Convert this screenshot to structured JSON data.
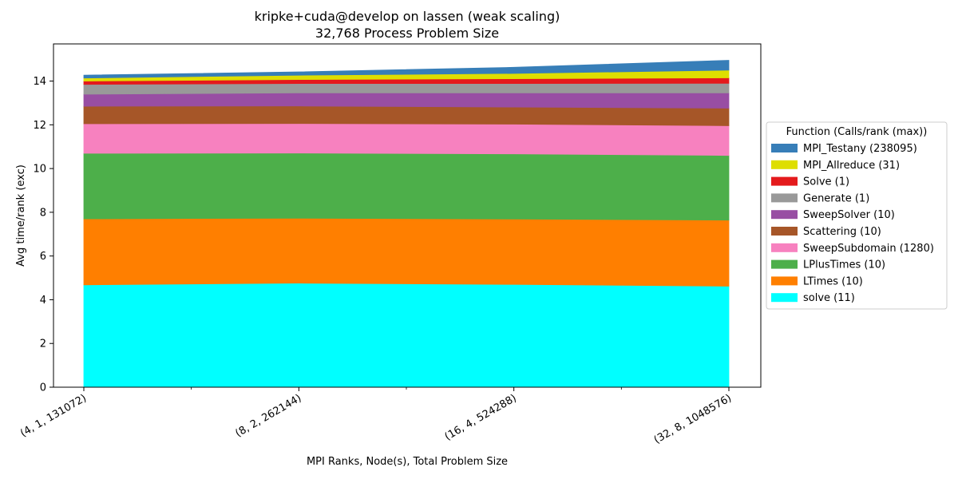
{
  "chart_data": {
    "type": "area",
    "title": "kripke+cuda@develop on lassen (weak scaling)",
    "subtitle": "32,768 Process Problem Size",
    "xlabel": "MPI Ranks, Node(s), Total Problem Size",
    "ylabel": "Avg time/rank (exc)",
    "categories": [
      "(4, 1, 131072)",
      "(8, 2, 262144)",
      "(16, 4, 524288)",
      "(32, 8, 1048576)"
    ],
    "ylim": [
      0,
      15.7
    ],
    "yticks": [
      0,
      2,
      4,
      6,
      8,
      10,
      12,
      14
    ],
    "grid": false,
    "legend_title": "Function (Calls/rank (max))",
    "legend_position": "right",
    "series": [
      {
        "name": "solve (11)",
        "color": "#00ffff",
        "values": [
          4.68,
          4.76,
          4.7,
          4.62
        ]
      },
      {
        "name": "LTimes (10)",
        "color": "#ff7f00",
        "values": [
          3.02,
          2.97,
          2.99,
          3.02
        ]
      },
      {
        "name": "LPlusTimes (10)",
        "color": "#4daf4a",
        "values": [
          3.0,
          2.98,
          2.98,
          2.96
        ]
      },
      {
        "name": "SweepSubdomain (1280)",
        "color": "#f781bf",
        "values": [
          1.35,
          1.35,
          1.36,
          1.36
        ]
      },
      {
        "name": "Scattering (10)",
        "color": "#a65628",
        "values": [
          0.8,
          0.8,
          0.78,
          0.8
        ]
      },
      {
        "name": "SweepSolver (10)",
        "color": "#984ea3",
        "values": [
          0.55,
          0.6,
          0.65,
          0.7
        ]
      },
      {
        "name": "Generate (1)",
        "color": "#999999",
        "values": [
          0.45,
          0.43,
          0.43,
          0.44
        ]
      },
      {
        "name": "Solve (1)",
        "color": "#e41a1c",
        "values": [
          0.15,
          0.18,
          0.22,
          0.25
        ]
      },
      {
        "name": "MPI_Allreduce (31)",
        "color": "#dede00",
        "values": [
          0.14,
          0.2,
          0.24,
          0.35
        ]
      },
      {
        "name": "MPI_Testany (238095)",
        "color": "#377eb8",
        "values": [
          0.13,
          0.15,
          0.28,
          0.45
        ]
      }
    ]
  }
}
